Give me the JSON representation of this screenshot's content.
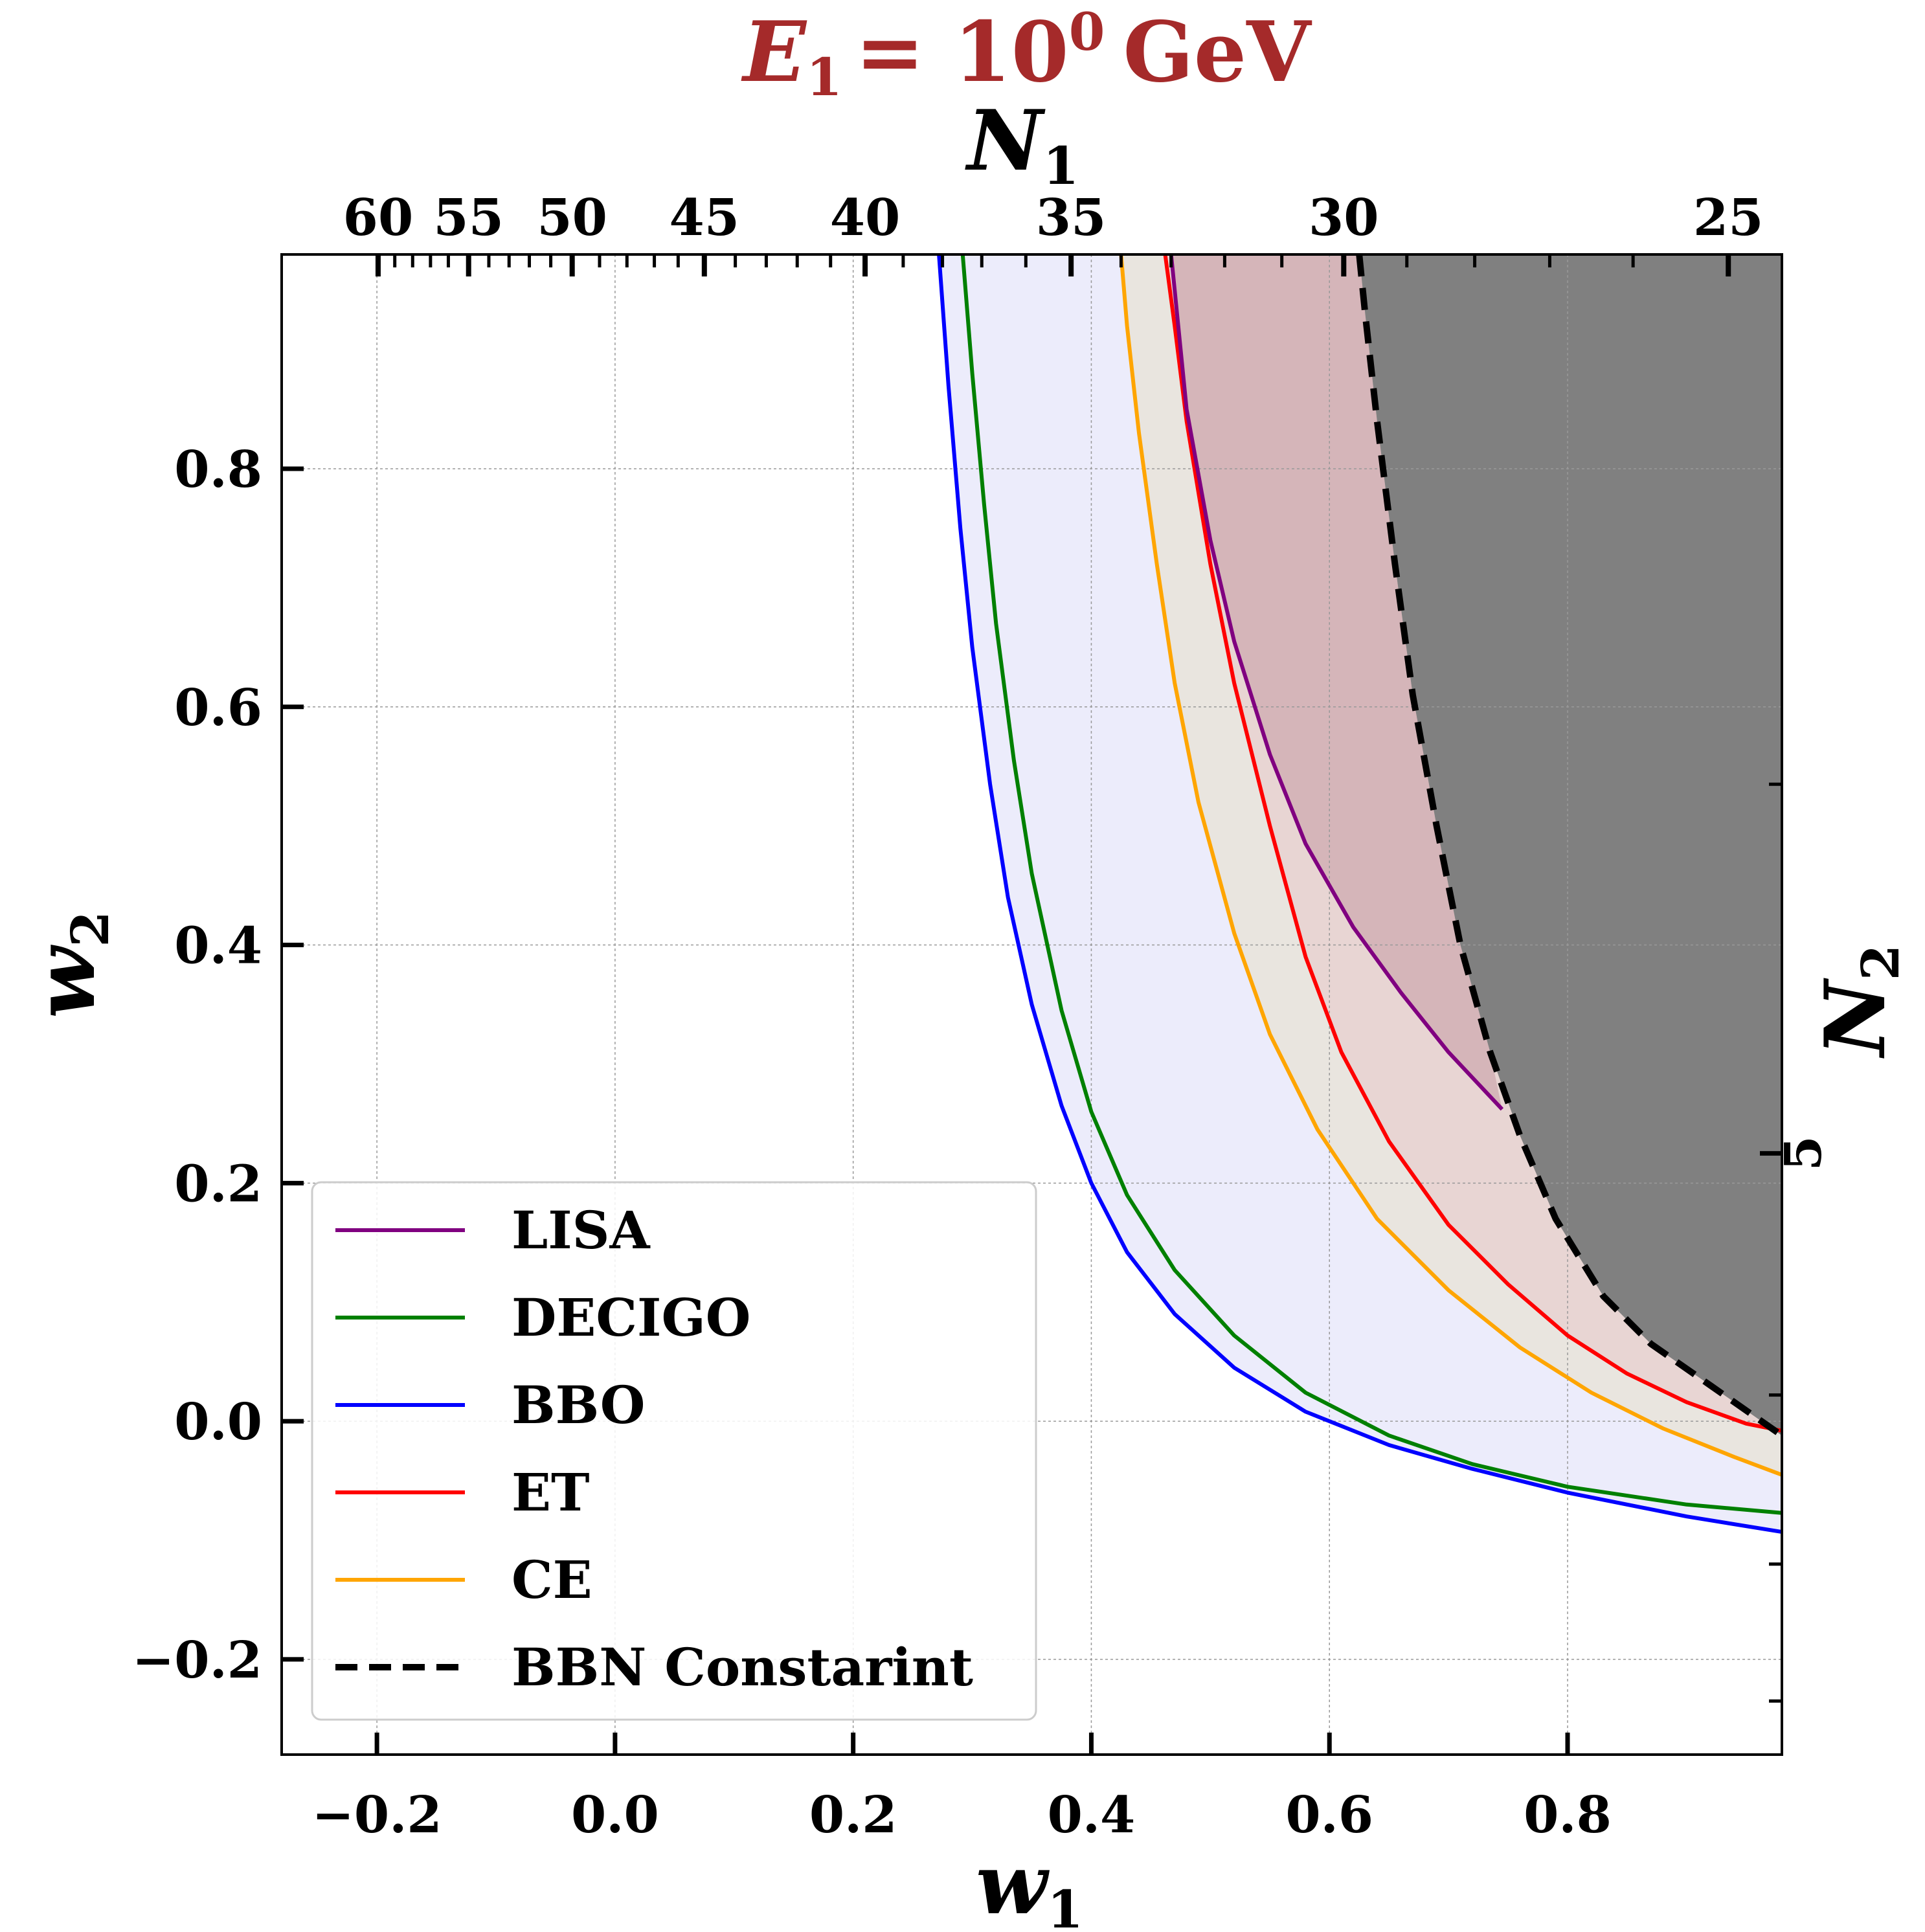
{
  "chart_data": {
    "type": "line",
    "title": "E_1 = 10^0 GeV",
    "title_parts": {
      "var": "E",
      "sub": "1",
      "eq": "= 10",
      "sup": "0",
      "unit": "GeV"
    },
    "title_color": "#a52a2a",
    "xlabel": {
      "var": "w",
      "sub": "1"
    },
    "ylabel": {
      "var": "w",
      "sub": "2"
    },
    "top_xlabel": {
      "var": "N",
      "sub": "1"
    },
    "right_ylabel": {
      "var": "N",
      "sub": "2"
    },
    "xlim": [
      -0.28,
      0.98
    ],
    "ylim": [
      -0.28,
      0.98
    ],
    "xticks": [
      {
        "v": -0.2,
        "label": "−0.2"
      },
      {
        "v": 0.0,
        "label": "0.0"
      },
      {
        "v": 0.2,
        "label": "0.2"
      },
      {
        "v": 0.4,
        "label": "0.4"
      },
      {
        "v": 0.6,
        "label": "0.6"
      },
      {
        "v": 0.8,
        "label": "0.8"
      }
    ],
    "yticks": [
      {
        "v": -0.2,
        "label": "−0.2"
      },
      {
        "v": 0.0,
        "label": "0.0"
      },
      {
        "v": 0.2,
        "label": "0.2"
      },
      {
        "v": 0.4,
        "label": "0.4"
      },
      {
        "v": 0.6,
        "label": "0.6"
      },
      {
        "v": 0.8,
        "label": "0.8"
      }
    ],
    "top_ticks": [
      {
        "w1": -0.199,
        "label": "60"
      },
      {
        "w1": -0.123,
        "label": "55"
      },
      {
        "w1": -0.036,
        "label": "50"
      },
      {
        "w1": 0.075,
        "label": "45"
      },
      {
        "w1": 0.21,
        "label": "40"
      },
      {
        "w1": 0.383,
        "label": "35"
      },
      {
        "w1": 0.612,
        "label": "30"
      },
      {
        "w1": 0.935,
        "label": "25"
      }
    ],
    "top_minor_ticks": [
      -0.185,
      -0.17,
      -0.155,
      -0.14,
      -0.106,
      -0.089,
      -0.072,
      -0.054,
      -0.013,
      0.01,
      0.033,
      0.053,
      0.101,
      0.127,
      0.153,
      0.181,
      0.242,
      0.275,
      0.308,
      0.345,
      0.425,
      0.467,
      0.512,
      0.56,
      0.665,
      0.722,
      0.785,
      0.855
    ],
    "right_ticks": [
      {
        "w2": 0.225,
        "label": "5"
      }
    ],
    "right_minor_ticks": [
      0.535,
      0.022,
      -0.12,
      -0.235
    ],
    "grid": true,
    "legend_position": "lower-left",
    "series": [
      {
        "name": "LISA",
        "color": "#800080",
        "fill": "#c8a0a8",
        "data": [
          [
            0.467,
            0.98
          ],
          [
            0.48,
            0.85
          ],
          [
            0.5,
            0.74
          ],
          [
            0.52,
            0.655
          ],
          [
            0.55,
            0.56
          ],
          [
            0.58,
            0.485
          ],
          [
            0.62,
            0.415
          ],
          [
            0.66,
            0.36
          ],
          [
            0.7,
            0.31
          ],
          [
            0.745,
            0.262
          ]
        ]
      },
      {
        "name": "DECIGO",
        "color": "#008000",
        "fill": null,
        "data": [
          [
            0.292,
            0.98
          ],
          [
            0.3,
            0.88
          ],
          [
            0.31,
            0.77
          ],
          [
            0.32,
            0.67
          ],
          [
            0.335,
            0.555
          ],
          [
            0.35,
            0.46
          ],
          [
            0.375,
            0.345
          ],
          [
            0.4,
            0.26
          ],
          [
            0.43,
            0.19
          ],
          [
            0.47,
            0.127
          ],
          [
            0.52,
            0.072
          ],
          [
            0.58,
            0.024
          ],
          [
            0.65,
            -0.012
          ],
          [
            0.72,
            -0.036
          ],
          [
            0.8,
            -0.055
          ],
          [
            0.9,
            -0.07
          ],
          [
            0.98,
            -0.077
          ]
        ]
      },
      {
        "name": "BBO",
        "color": "#0000ff",
        "fill": "#dcdcf8",
        "data": [
          [
            0.272,
            0.98
          ],
          [
            0.28,
            0.87
          ],
          [
            0.29,
            0.75
          ],
          [
            0.3,
            0.65
          ],
          [
            0.315,
            0.535
          ],
          [
            0.33,
            0.44
          ],
          [
            0.35,
            0.35
          ],
          [
            0.375,
            0.265
          ],
          [
            0.4,
            0.2
          ],
          [
            0.43,
            0.142
          ],
          [
            0.47,
            0.09
          ],
          [
            0.52,
            0.045
          ],
          [
            0.58,
            0.008
          ],
          [
            0.65,
            -0.02
          ],
          [
            0.72,
            -0.04
          ],
          [
            0.8,
            -0.06
          ],
          [
            0.9,
            -0.08
          ],
          [
            0.98,
            -0.093
          ]
        ]
      },
      {
        "name": "ET",
        "color": "#ff0000",
        "fill": "#e8c8c8",
        "data": [
          [
            0.462,
            0.98
          ],
          [
            0.47,
            0.92
          ],
          [
            0.48,
            0.84
          ],
          [
            0.5,
            0.72
          ],
          [
            0.52,
            0.62
          ],
          [
            0.55,
            0.5
          ],
          [
            0.58,
            0.39
          ],
          [
            0.61,
            0.31
          ],
          [
            0.65,
            0.235
          ],
          [
            0.7,
            0.165
          ],
          [
            0.75,
            0.115
          ],
          [
            0.8,
            0.072
          ],
          [
            0.85,
            0.04
          ],
          [
            0.9,
            0.016
          ],
          [
            0.95,
            -0.002
          ],
          [
            0.98,
            -0.008
          ]
        ]
      },
      {
        "name": "CE",
        "color": "#ffa500",
        "fill": "#e8e0c8",
        "data": [
          [
            0.425,
            0.98
          ],
          [
            0.43,
            0.92
          ],
          [
            0.44,
            0.83
          ],
          [
            0.455,
            0.72
          ],
          [
            0.47,
            0.62
          ],
          [
            0.49,
            0.52
          ],
          [
            0.52,
            0.41
          ],
          [
            0.55,
            0.325
          ],
          [
            0.59,
            0.245
          ],
          [
            0.64,
            0.17
          ],
          [
            0.7,
            0.11
          ],
          [
            0.76,
            0.062
          ],
          [
            0.82,
            0.024
          ],
          [
            0.88,
            -0.006
          ],
          [
            0.94,
            -0.03
          ],
          [
            0.98,
            -0.045
          ]
        ]
      },
      {
        "name": "BBN Constarint",
        "color": "#000000",
        "fill": "#808080",
        "dashed": true,
        "data": [
          [
            0.625,
            0.98
          ],
          [
            0.63,
            0.93
          ],
          [
            0.64,
            0.84
          ],
          [
            0.655,
            0.72
          ],
          [
            0.67,
            0.61
          ],
          [
            0.69,
            0.5
          ],
          [
            0.71,
            0.4
          ],
          [
            0.735,
            0.31
          ],
          [
            0.76,
            0.24
          ],
          [
            0.79,
            0.17
          ],
          [
            0.83,
            0.105
          ],
          [
            0.87,
            0.065
          ],
          [
            0.92,
            0.03
          ],
          [
            0.98,
            -0.012
          ]
        ]
      }
    ]
  }
}
